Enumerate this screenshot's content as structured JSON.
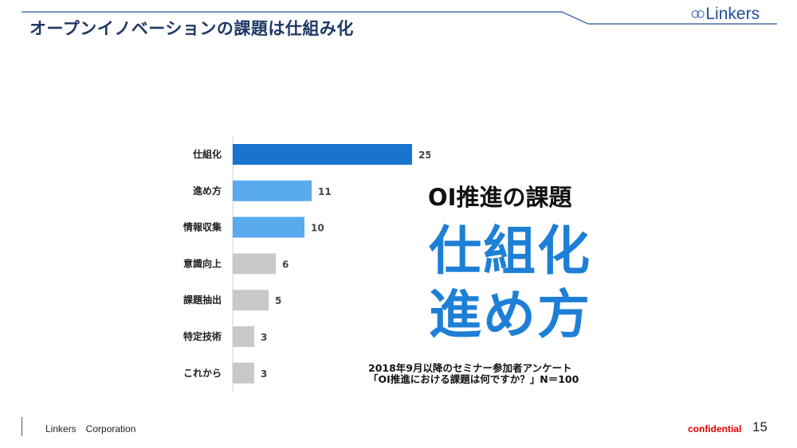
{
  "header": {
    "title": "オープンイノベーションの課題は仕組み化",
    "logo_text": "Linkers",
    "rule_color": "#4a6fa5"
  },
  "chart_data": {
    "type": "bar",
    "orientation": "horizontal",
    "categories": [
      "仕組化",
      "進め方",
      "情報収集",
      "意識向上",
      "課題抽出",
      "特定技術",
      "これから"
    ],
    "values": [
      25,
      11,
      10,
      6,
      5,
      3,
      3
    ],
    "colors": [
      "#1874cd",
      "#5aaaf0",
      "#5aaaf0",
      "#c8c8c8",
      "#c8c8c8",
      "#c8c8c8",
      "#c8c8c8"
    ],
    "xlim": [
      0,
      25
    ],
    "grid": false,
    "data_labels": true
  },
  "callout": {
    "heading": "OI推進の課題",
    "line1": "仕組化",
    "line2": "進め方",
    "accent_color": "#1e7fd6"
  },
  "note": {
    "line1": "2018年9月以降のセミナー参加者アンケート",
    "line2": "「OI推進における課題は何ですか？」N＝100"
  },
  "footer": {
    "company": "Linkers　Corporation",
    "confidential": "confidential",
    "page_number": "15"
  }
}
